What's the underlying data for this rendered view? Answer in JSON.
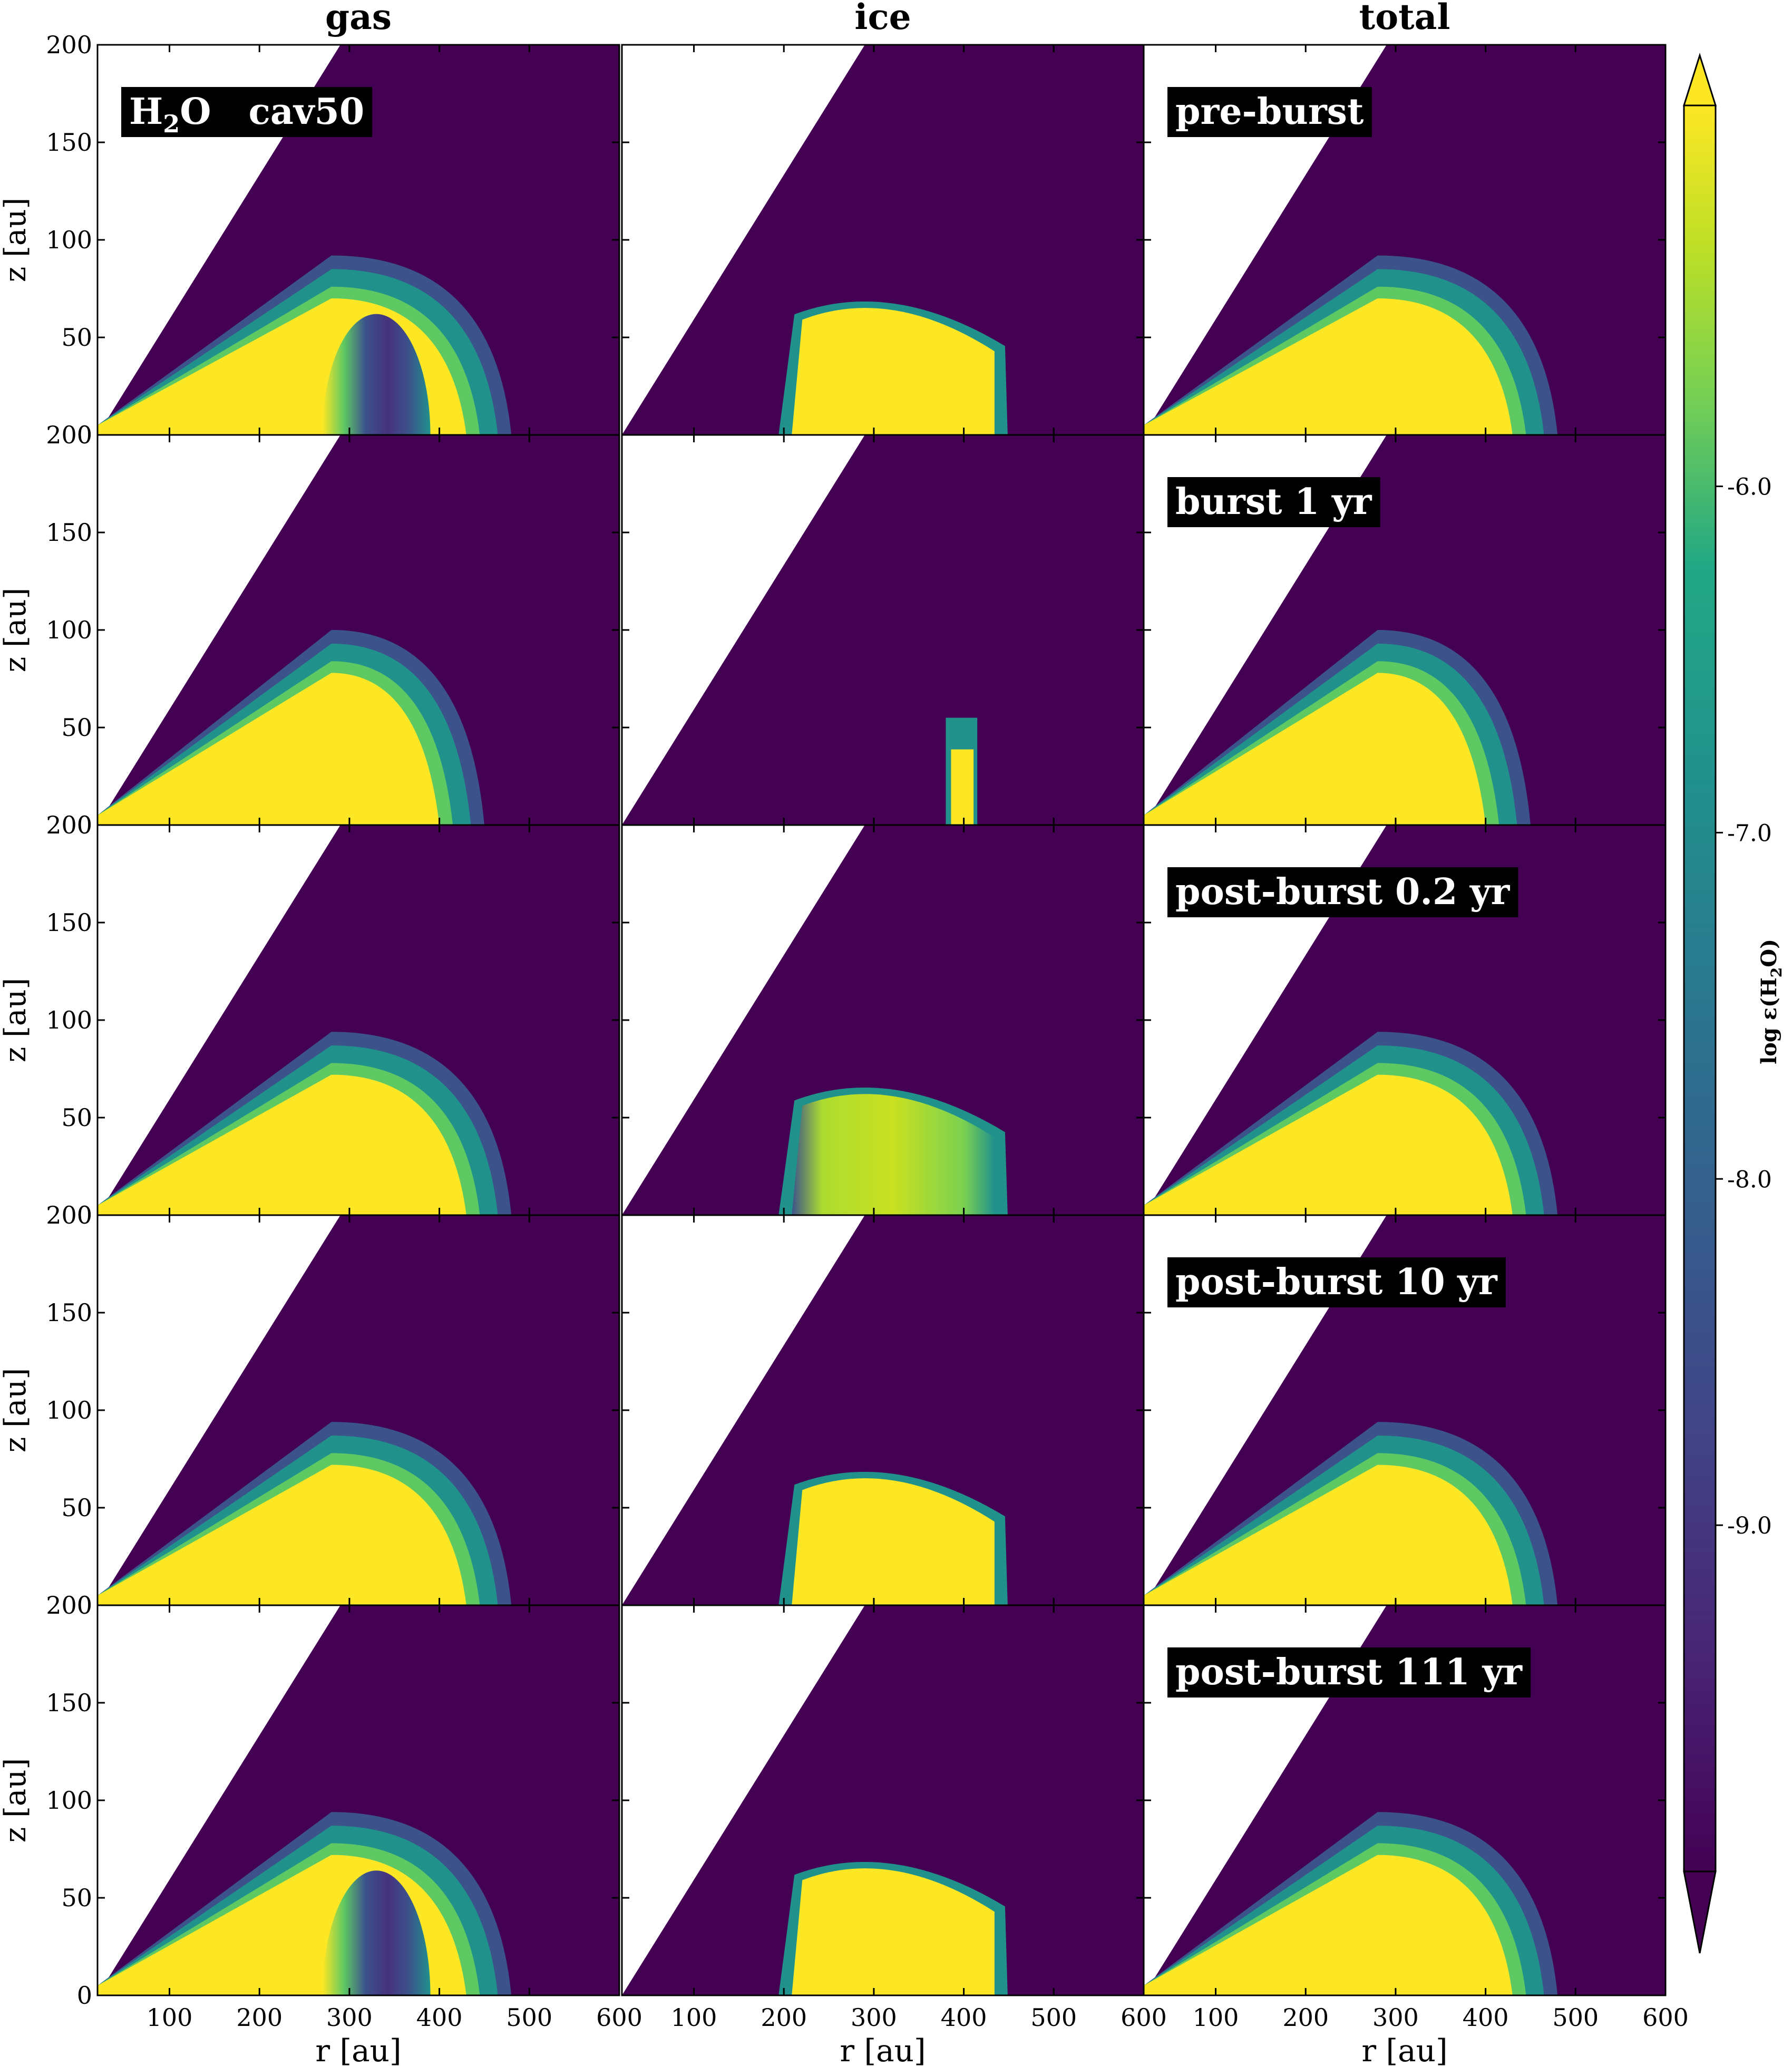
{
  "chart_data": {
    "type": "heatmap",
    "layout": "5 rows x 3 columns of panels sharing axes",
    "column_titles": [
      "gas",
      "ice",
      "total"
    ],
    "row_labels": [
      "H2O   cav50 / pre-burst",
      "burst 1 yr",
      "post-burst 0.2 yr",
      "post-burst 10 yr",
      "post-burst 111 yr"
    ],
    "panel_labels": [
      {
        "row": 0,
        "col": 0,
        "main": "H",
        "sub": "2",
        "rest": "O   cav50"
      },
      {
        "row": 0,
        "col": 2,
        "text": "pre-burst"
      },
      {
        "row": 1,
        "col": 2,
        "text": "burst 1 yr"
      },
      {
        "row": 2,
        "col": 2,
        "text": "post-burst 0.2 yr"
      },
      {
        "row": 3,
        "col": 2,
        "text": "post-burst 10 yr"
      },
      {
        "row": 4,
        "col": 2,
        "text": "post-burst 111 yr"
      }
    ],
    "xlabel": "r [au]",
    "ylabel": "z [au]",
    "xlim": [
      20,
      600
    ],
    "ylim": [
      0,
      200
    ],
    "xticks": [
      100,
      200,
      300,
      400,
      500,
      600
    ],
    "yticks": [
      0,
      50,
      100,
      150,
      200
    ],
    "colorbar": {
      "label_prefix": "log ε(H",
      "label_sub": "2",
      "label_suffix": "O)",
      "ticks": [
        -6.0,
        -7.0,
        -8.0,
        -9.0
      ],
      "tick_labels": [
        "-6.0",
        "-7.0",
        "-8.0",
        "-9.0"
      ],
      "range": [
        -10.0,
        -4.9
      ],
      "extend": "both",
      "colormap": "viridis"
    },
    "cavity_boundary": {
      "r_at_z0": 20,
      "r_at_z200": 290
    },
    "panels": [
      {
        "row": 0,
        "col": 0,
        "kind": "gas",
        "outer_radius": 480,
        "midplane_height": 70,
        "inner_edge": 280,
        "depleted_core": true,
        "core_center": 330
      },
      {
        "row": 0,
        "col": 1,
        "kind": "ice",
        "r_min": 200,
        "r_max": 440,
        "height": 78
      },
      {
        "row": 0,
        "col": 2,
        "kind": "total",
        "outer_radius": 480,
        "midplane_height": 70
      },
      {
        "row": 1,
        "col": 0,
        "kind": "gas",
        "outer_radius": 450,
        "midplane_height": 78,
        "inner_edge": 0,
        "depleted_core": false
      },
      {
        "row": 1,
        "col": 1,
        "kind": "ice_patch",
        "r_min": 380,
        "r_max": 430,
        "height": 55
      },
      {
        "row": 1,
        "col": 2,
        "kind": "total",
        "outer_radius": 450,
        "midplane_height": 78
      },
      {
        "row": 2,
        "col": 0,
        "kind": "gas",
        "outer_radius": 480,
        "midplane_height": 72,
        "inner_edge": 0,
        "depleted_core": false
      },
      {
        "row": 2,
        "col": 1,
        "kind": "ice_green",
        "r_min": 200,
        "r_max": 440,
        "height": 75
      },
      {
        "row": 2,
        "col": 2,
        "kind": "total",
        "outer_radius": 480,
        "midplane_height": 72
      },
      {
        "row": 3,
        "col": 0,
        "kind": "gas",
        "outer_radius": 480,
        "midplane_height": 72,
        "inner_edge": 0,
        "depleted_core": false
      },
      {
        "row": 3,
        "col": 1,
        "kind": "ice",
        "r_min": 200,
        "r_max": 440,
        "height": 78
      },
      {
        "row": 3,
        "col": 2,
        "kind": "total",
        "outer_radius": 480,
        "midplane_height": 72
      },
      {
        "row": 4,
        "col": 0,
        "kind": "gas",
        "outer_radius": 480,
        "midplane_height": 72,
        "inner_edge": 280,
        "depleted_core": true,
        "core_center": 330
      },
      {
        "row": 4,
        "col": 1,
        "kind": "ice",
        "r_min": 200,
        "r_max": 440,
        "height": 78
      },
      {
        "row": 4,
        "col": 2,
        "kind": "total",
        "outer_radius": 480,
        "midplane_height": 72
      }
    ],
    "colors": {
      "background_purple": "#440154",
      "deep_purple": "#46327e",
      "blue_purple": "#3b528b",
      "teal": "#21918c",
      "green": "#5ec962",
      "light_green": "#addc30",
      "yellow": "#fde725"
    }
  }
}
